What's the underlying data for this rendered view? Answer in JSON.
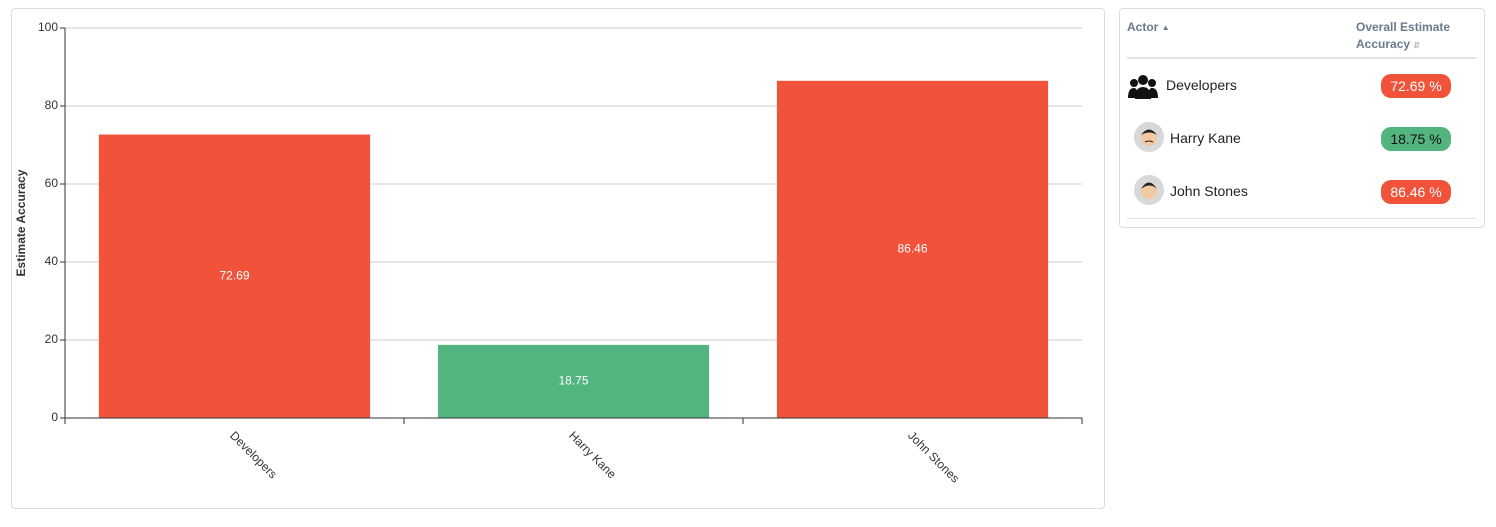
{
  "chart_data": {
    "type": "bar",
    "y_label": "Estimate Accuracy",
    "categories": [
      "Developers",
      "Harry Kane",
      "John Stones"
    ],
    "values": [
      72.69,
      18.75,
      86.46
    ],
    "colors": [
      "#f0533a",
      "#52b47e",
      "#f0533a"
    ],
    "ylim": [
      0,
      100
    ],
    "yticks": [
      0,
      20,
      40,
      60,
      80,
      100
    ],
    "grid": true
  },
  "table": {
    "headers": [
      "Actor",
      "Overall Estimate Accuracy"
    ],
    "rows": [
      {
        "actor": "Developers",
        "accuracy": "72.69 %",
        "color": "#f0533a"
      },
      {
        "actor": "Harry Kane",
        "accuracy": "18.75 %",
        "color": "#52b47e"
      },
      {
        "actor": "John Stones",
        "accuracy": "86.46 %",
        "color": "#f0533a"
      }
    ]
  }
}
